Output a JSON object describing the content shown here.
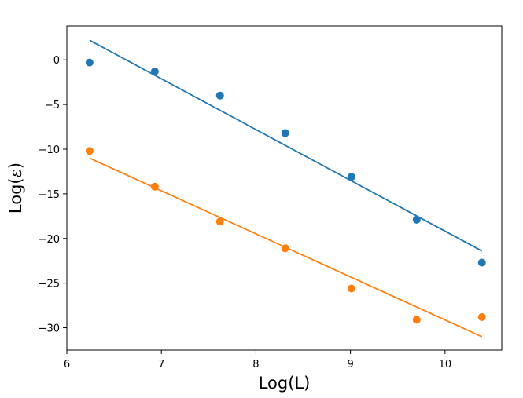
{
  "chart_data": {
    "type": "scatter",
    "xlabel": "Log(L)",
    "ylabel_prefix": "Log(",
    "ylabel_symbol": "ε",
    "ylabel_suffix": ")",
    "xlim": [
      6,
      10.6
    ],
    "ylim": [
      -32.5,
      3.8
    ],
    "xticks": [
      6,
      7,
      8,
      9,
      10
    ],
    "xtick_labels": [
      "6",
      "7",
      "8",
      "9",
      "10"
    ],
    "yticks": [
      0,
      -5,
      -10,
      -15,
      -20,
      -25,
      -30
    ],
    "ytick_labels": [
      "0",
      "−5",
      "−10",
      "−15",
      "−20",
      "−25",
      "−30"
    ],
    "grid": false,
    "series": [
      {
        "color": "#1f77b4",
        "points": [
          {
            "x": 6.24,
            "y": -0.3
          },
          {
            "x": 6.93,
            "y": -1.3
          },
          {
            "x": 7.62,
            "y": -4.0
          },
          {
            "x": 8.31,
            "y": -8.2
          },
          {
            "x": 9.01,
            "y": -13.1
          },
          {
            "x": 9.7,
            "y": -17.9
          },
          {
            "x": 10.39,
            "y": -22.7
          }
        ],
        "fit_line": [
          {
            "x": 6.24,
            "y": 2.2
          },
          {
            "x": 10.39,
            "y": -21.4
          }
        ]
      },
      {
        "color": "#ff7f0e",
        "points": [
          {
            "x": 6.24,
            "y": -10.2
          },
          {
            "x": 6.93,
            "y": -14.2
          },
          {
            "x": 7.62,
            "y": -18.1
          },
          {
            "x": 8.31,
            "y": -21.1
          },
          {
            "x": 9.01,
            "y": -25.6
          },
          {
            "x": 9.7,
            "y": -29.1
          },
          {
            "x": 10.39,
            "y": -28.8
          }
        ],
        "fit_line": [
          {
            "x": 6.24,
            "y": -11.0
          },
          {
            "x": 10.39,
            "y": -31.0
          }
        ]
      }
    ]
  }
}
